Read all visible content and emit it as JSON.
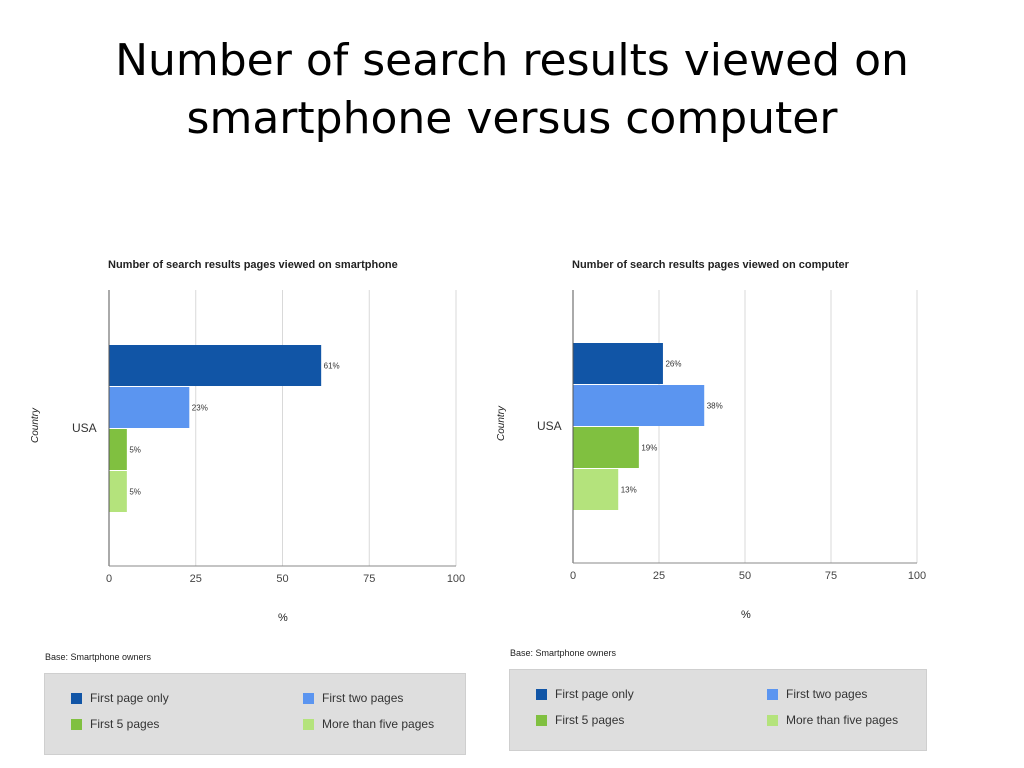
{
  "slide": {
    "title_line1": "Number of search results viewed on",
    "title_line2": "smartphone versus computer"
  },
  "chart_data": [
    {
      "type": "bar",
      "orientation": "horizontal",
      "title": "Number of search results pages viewed on smartphone",
      "xlabel": "%",
      "ylabel": "Country",
      "categories": [
        "USA"
      ],
      "series": [
        {
          "name": "First page only",
          "values": [
            61
          ],
          "label": "61%",
          "color": "#1155a6"
        },
        {
          "name": "First two pages",
          "values": [
            23
          ],
          "label": "23%",
          "color": "#5b95f0"
        },
        {
          "name": "First 5 pages",
          "values": [
            5
          ],
          "label": "5%",
          "color": "#80c040"
        },
        {
          "name": "More than five pages",
          "values": [
            5
          ],
          "label": "5%",
          "color": "#b4e37c"
        }
      ],
      "xlim": [
        0,
        100
      ],
      "xticks": [
        "0",
        "25",
        "50",
        "75",
        "100"
      ],
      "grid": true,
      "legend_position": "bottom",
      "base_note": "Base: Smartphone owners"
    },
    {
      "type": "bar",
      "orientation": "horizontal",
      "title": "Number of search results pages viewed on computer",
      "xlabel": "%",
      "ylabel": "Country",
      "categories": [
        "USA"
      ],
      "series": [
        {
          "name": "First page only",
          "values": [
            26
          ],
          "label": "26%",
          "color": "#1155a6"
        },
        {
          "name": "First two pages",
          "values": [
            38
          ],
          "label": "38%",
          "color": "#5b95f0"
        },
        {
          "name": "First 5 pages",
          "values": [
            19
          ],
          "label": "19%",
          "color": "#80c040"
        },
        {
          "name": "More than five pages",
          "values": [
            13
          ],
          "label": "13%",
          "color": "#b4e37c"
        }
      ],
      "xlim": [
        0,
        100
      ],
      "xticks": [
        "0",
        "25",
        "50",
        "75",
        "100"
      ],
      "grid": true,
      "legend_position": "bottom",
      "base_note": "Base: Smartphone owners"
    }
  ]
}
